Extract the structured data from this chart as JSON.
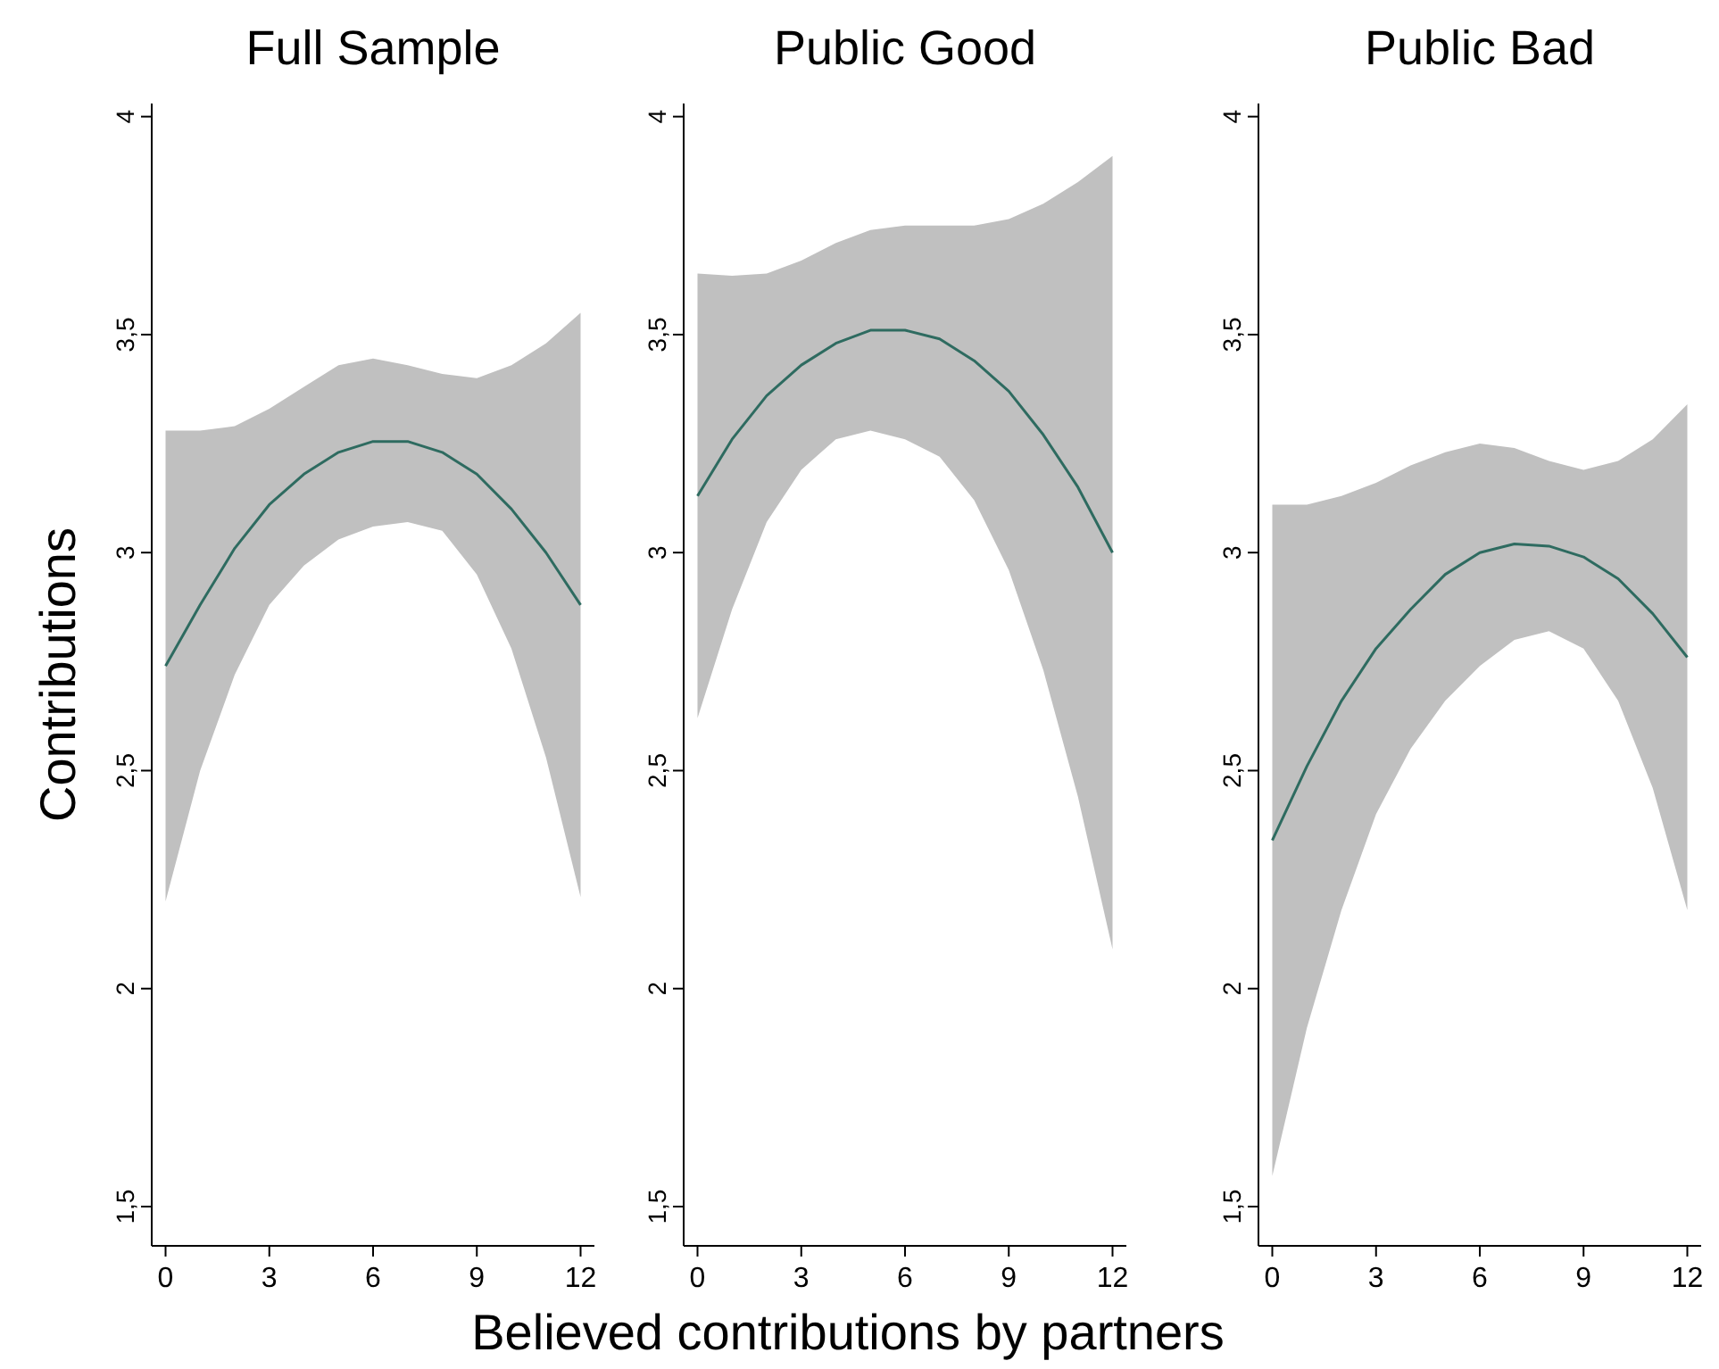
{
  "chart_data": [
    {
      "type": "line",
      "title": "Full Sample",
      "ylabel": "Contributions",
      "x": [
        0,
        1,
        2,
        3,
        4,
        5,
        6,
        7,
        8,
        9,
        10,
        11,
        12
      ],
      "xlim": [
        -0.4,
        12.4
      ],
      "xticks": [
        0,
        3,
        6,
        9,
        12
      ],
      "ylim": [
        1.41,
        4.03
      ],
      "yticks": [
        {
          "value": 1.5,
          "label": "1,5"
        },
        2,
        {
          "value": 2.5,
          "label": "2,5"
        },
        3,
        {
          "value": 3.5,
          "label": "3,5"
        },
        4
      ],
      "series": [
        {
          "color": "#2e6b60",
          "values": [
            2.74,
            2.88,
            3.01,
            3.11,
            3.18,
            3.23,
            3.255,
            3.255,
            3.23,
            3.18,
            3.1,
            3.0,
            2.88
          ],
          "upper": [
            3.28,
            3.28,
            3.29,
            3.33,
            3.38,
            3.43,
            3.445,
            3.43,
            3.41,
            3.4,
            3.43,
            3.48,
            3.55
          ],
          "lower": [
            2.2,
            2.5,
            2.72,
            2.88,
            2.97,
            3.03,
            3.06,
            3.07,
            3.05,
            2.95,
            2.78,
            2.53,
            2.21
          ]
        }
      ]
    },
    {
      "type": "line",
      "title": "Public Good",
      "xlabel": "Believed contributions by partners",
      "x": [
        0,
        1,
        2,
        3,
        4,
        5,
        6,
        7,
        8,
        9,
        10,
        11,
        12
      ],
      "xlim": [
        -0.4,
        12.4
      ],
      "xticks": [
        0,
        3,
        6,
        9,
        12
      ],
      "ylim": [
        1.41,
        4.03
      ],
      "yticks": [
        {
          "value": 1.5,
          "label": "1,5"
        },
        2,
        {
          "value": 2.5,
          "label": "2,5"
        },
        3,
        {
          "value": 3.5,
          "label": "3,5"
        },
        4
      ],
      "series": [
        {
          "color": "#2e6b60",
          "values": [
            3.13,
            3.26,
            3.36,
            3.43,
            3.48,
            3.51,
            3.51,
            3.49,
            3.44,
            3.37,
            3.27,
            3.15,
            3.0
          ],
          "upper": [
            3.64,
            3.635,
            3.64,
            3.67,
            3.71,
            3.74,
            3.75,
            3.75,
            3.75,
            3.765,
            3.8,
            3.85,
            3.91
          ],
          "lower": [
            2.62,
            2.87,
            3.07,
            3.19,
            3.26,
            3.28,
            3.26,
            3.22,
            3.12,
            2.96,
            2.73,
            2.44,
            2.09
          ]
        }
      ]
    },
    {
      "type": "line",
      "title": "Public Bad",
      "x": [
        0,
        1,
        2,
        3,
        4,
        5,
        6,
        7,
        8,
        9,
        10,
        11,
        12
      ],
      "xlim": [
        -0.4,
        12.4
      ],
      "xticks": [
        0,
        3,
        6,
        9,
        12
      ],
      "ylim": [
        1.41,
        4.03
      ],
      "yticks": [
        {
          "value": 1.5,
          "label": "1,5"
        },
        2,
        {
          "value": 2.5,
          "label": "2,5"
        },
        3,
        {
          "value": 3.5,
          "label": "3,5"
        },
        4
      ],
      "series": [
        {
          "color": "#2e6b60",
          "values": [
            2.34,
            2.51,
            2.66,
            2.78,
            2.87,
            2.95,
            3.0,
            3.02,
            3.015,
            2.99,
            2.94,
            2.86,
            2.76
          ],
          "upper": [
            3.11,
            3.11,
            3.13,
            3.16,
            3.2,
            3.23,
            3.25,
            3.24,
            3.21,
            3.19,
            3.21,
            3.26,
            3.34
          ],
          "lower": [
            1.57,
            1.91,
            2.18,
            2.4,
            2.55,
            2.66,
            2.74,
            2.8,
            2.82,
            2.78,
            2.66,
            2.46,
            2.18
          ]
        }
      ]
    }
  ]
}
